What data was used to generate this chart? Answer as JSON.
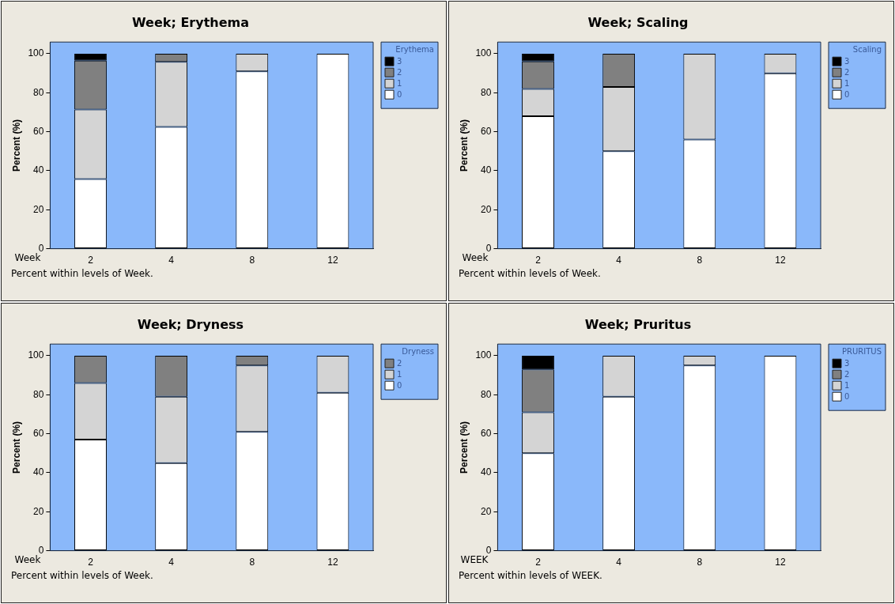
{
  "chart_data": [
    {
      "type": "bar",
      "stacked": true,
      "title": "Week; Erythema",
      "xlabel": "Week",
      "ylabel": "Percent (%)",
      "legend_title": "Erythema",
      "legend": "top right",
      "grid": false,
      "categories": [
        "2",
        "4",
        "8",
        "12"
      ],
      "ylim": [
        0,
        106
      ],
      "yticks": [
        0,
        20,
        40,
        60,
        80,
        100
      ],
      "series": [
        {
          "name": "0",
          "color": "#ffffff",
          "values": [
            35.7,
            62.5,
            91,
            100
          ]
        },
        {
          "name": "1",
          "color": "#d4d4d4",
          "values": [
            35.7,
            33.3,
            9,
            null
          ]
        },
        {
          "name": "2",
          "color": "#808080",
          "values": [
            25,
            4.2,
            null,
            null
          ]
        },
        {
          "name": "3",
          "color": "#000000",
          "values": [
            3.6,
            null,
            null,
            null
          ]
        }
      ],
      "annotations": [
        "Percent within levels of Week."
      ]
    },
    {
      "type": "bar",
      "stacked": true,
      "title": "Week; Scaling",
      "xlabel": "Week",
      "ylabel": "Percent (%)",
      "legend_title": "Scaling",
      "legend": "top right",
      "grid": false,
      "categories": [
        "2",
        "4",
        "8",
        "12"
      ],
      "ylim": [
        0,
        106
      ],
      "yticks": [
        0,
        20,
        40,
        60,
        80,
        100
      ],
      "series": [
        {
          "name": "0",
          "color": "#ffffff",
          "values": [
            68,
            50,
            56,
            90
          ]
        },
        {
          "name": "1",
          "color": "#d4d4d4",
          "values": [
            14,
            33,
            44,
            10
          ]
        },
        {
          "name": "2",
          "color": "#808080",
          "values": [
            14,
            17,
            null,
            null
          ]
        },
        {
          "name": "3",
          "color": "#000000",
          "values": [
            4,
            null,
            null,
            null
          ]
        }
      ],
      "annotations": [
        "Percent within levels of Week."
      ]
    },
    {
      "type": "bar",
      "stacked": true,
      "title": "Week; Dryness",
      "xlabel": "Week",
      "ylabel": "Percent (%)",
      "legend_title": "Dryness",
      "legend": "top right",
      "grid": false,
      "categories": [
        "2",
        "4",
        "8",
        "12"
      ],
      "ylim": [
        0,
        106
      ],
      "yticks": [
        0,
        20,
        40,
        60,
        80,
        100
      ],
      "series": [
        {
          "name": "0",
          "color": "#ffffff",
          "values": [
            57,
            45,
            61,
            81
          ]
        },
        {
          "name": "1",
          "color": "#d4d4d4",
          "values": [
            29,
            34,
            34,
            19
          ]
        },
        {
          "name": "2",
          "color": "#808080",
          "values": [
            14,
            21,
            5,
            null
          ]
        }
      ],
      "annotations": [
        "Percent within levels of Week."
      ]
    },
    {
      "type": "bar",
      "stacked": true,
      "title": "Week; Pruritus",
      "xlabel": "WEEK",
      "ylabel": "Percent (%)",
      "legend_title": "PRURITUS",
      "legend": "top right",
      "grid": false,
      "categories": [
        "2",
        "4",
        "8",
        "12"
      ],
      "ylim": [
        0,
        106
      ],
      "yticks": [
        0,
        20,
        40,
        60,
        80,
        100
      ],
      "series": [
        {
          "name": "0",
          "color": "#ffffff",
          "values": [
            50,
            79,
            95,
            100
          ]
        },
        {
          "name": "1",
          "color": "#d4d4d4",
          "values": [
            21,
            21,
            5,
            null
          ]
        },
        {
          "name": "2",
          "color": "#808080",
          "values": [
            22,
            null,
            null,
            null
          ]
        },
        {
          "name": "3",
          "color": "#000000",
          "values": [
            7,
            null,
            null,
            null
          ]
        }
      ],
      "annotations": [
        "Percent within levels of WEEK."
      ]
    }
  ]
}
